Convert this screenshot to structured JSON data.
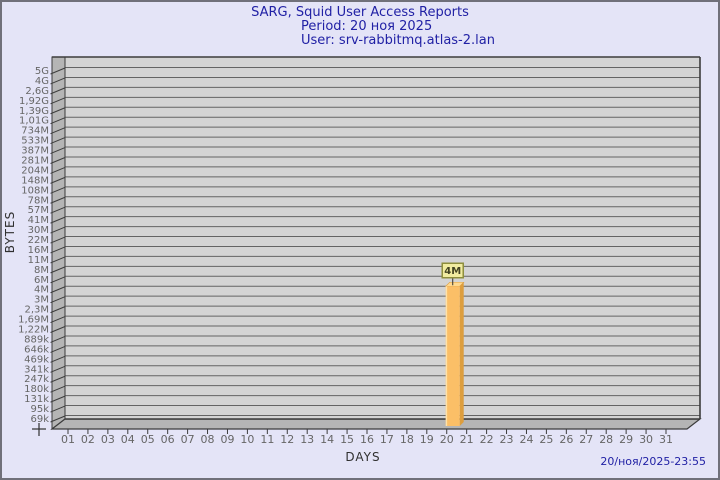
{
  "header": {
    "title": "SARG, Squid User Access Reports",
    "period": "Period: 20 ноя 2025",
    "user": "User: srv-rabbitmq.atlas-2.lan"
  },
  "footer": {
    "timestamp": "20/ноя/2025-23:55"
  },
  "colors": {
    "page_bg": "#e4e4f7",
    "page_border": "#70707a",
    "title_text": "#2121a5",
    "plot_bg": "#d4d4d4",
    "wall_fill": "#b5b5b5",
    "grid_line": "#646464",
    "plot_border": "#3c3c3c",
    "tick_text": "#666666",
    "axis_title_text": "#303030",
    "bar_front": "#fbbf67",
    "bar_side": "#dd9e3e",
    "bar_top": "#ffd98f",
    "bar_highlight": "#ffe2a8",
    "bar_label_bg": "#f1eca0",
    "bar_label_border": "#8e8e3c",
    "bar_label_text": "#444422",
    "footer_text": "#2121a5"
  },
  "chart_data": {
    "type": "bar",
    "title": "SARG, Squid User Access Reports",
    "subtitle": "Period: 20 ноя 2025",
    "user_line": "User: srv-rabbitmq.atlas-2.lan",
    "xlabel": "DAYS",
    "ylabel": "BYTES",
    "grid": true,
    "style": "3d-bar",
    "y_axis_scale": "custom-logarithmic",
    "y_tick_labels": [
      "5G",
      "4G",
      "2,6G",
      "1,92G",
      "1,39G",
      "1,01G",
      "734M",
      "533M",
      "387M",
      "281M",
      "204M",
      "148M",
      "108M",
      "78M",
      "57M",
      "41M",
      "30M",
      "22M",
      "16M",
      "11M",
      "8M",
      "6M",
      "4M",
      "3M",
      "2,3M",
      "1,69M",
      "1,22M",
      "889k",
      "646k",
      "469k",
      "341k",
      "247k",
      "180k",
      "131k",
      "95k",
      "69k"
    ],
    "categories": [
      "01",
      "02",
      "03",
      "04",
      "05",
      "06",
      "07",
      "08",
      "09",
      "10",
      "11",
      "12",
      "13",
      "14",
      "15",
      "16",
      "17",
      "18",
      "19",
      "20",
      "21",
      "22",
      "23",
      "24",
      "25",
      "26",
      "27",
      "28",
      "29",
      "30",
      "31"
    ],
    "series": [
      {
        "name": "bytes",
        "values": [
          null,
          null,
          null,
          null,
          null,
          null,
          null,
          null,
          null,
          null,
          null,
          null,
          null,
          null,
          null,
          null,
          null,
          null,
          null,
          "4M",
          null,
          null,
          null,
          null,
          null,
          null,
          null,
          null,
          null,
          null,
          null
        ]
      }
    ],
    "bars": [
      {
        "day": "20",
        "value_label": "4M",
        "y_tick_match": "4M"
      }
    ]
  }
}
